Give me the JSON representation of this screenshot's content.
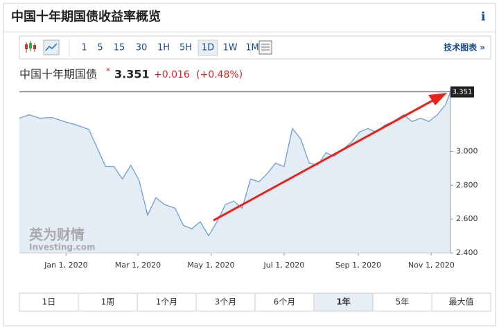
{
  "header": {
    "title": "中国十年期国债收益率概览",
    "info": "i"
  },
  "toolbar": {
    "intervals": [
      "1",
      "5",
      "15",
      "30",
      "1H",
      "5H",
      "1D",
      "1W",
      "1M"
    ],
    "active": 6,
    "link": "技术图表 »"
  },
  "quote": {
    "name": "中国十年期国债",
    "price": "3.351",
    "change": "+0.016",
    "change_pct": "(+0.48%)"
  },
  "watermark": {
    "brand": "英为财情",
    "site": "Investing.com"
  },
  "chart": {
    "type": "line",
    "color": "#6a9fd4",
    "x": [
      "2019-11-23",
      "2019-12-01",
      "2019-12-10",
      "2019-12-20",
      "2019-12-31",
      "2020-01-10",
      "2020-01-20",
      "2020-02-03",
      "2020-02-10",
      "2020-02-17",
      "2020-02-24",
      "2020-03-02",
      "2020-03-09",
      "2020-03-16",
      "2020-03-23",
      "2020-04-01",
      "2020-04-08",
      "2020-04-15",
      "2020-04-22",
      "2020-04-29",
      "2020-05-06",
      "2020-05-13",
      "2020-05-20",
      "2020-05-27",
      "2020-06-03",
      "2020-06-10",
      "2020-06-17",
      "2020-06-24",
      "2020-07-01",
      "2020-07-08",
      "2020-07-15",
      "2020-07-22",
      "2020-07-29",
      "2020-08-05",
      "2020-08-12",
      "2020-08-19",
      "2020-08-26",
      "2020-09-02",
      "2020-09-09",
      "2020-09-16",
      "2020-09-23",
      "2020-09-30",
      "2020-10-09",
      "2020-10-16",
      "2020-10-23",
      "2020-10-30",
      "2020-11-06",
      "2020-11-13",
      "2020-11-17"
    ],
    "values": [
      3.196,
      3.216,
      3.196,
      3.2,
      3.175,
      3.155,
      3.13,
      2.91,
      2.91,
      2.837,
      2.918,
      2.829,
      2.624,
      2.727,
      2.686,
      2.665,
      2.563,
      2.543,
      2.584,
      2.502,
      2.584,
      2.686,
      2.706,
      2.665,
      2.837,
      2.82,
      2.869,
      2.931,
      2.91,
      3.135,
      3.073,
      2.931,
      2.918,
      2.992,
      2.971,
      3.012,
      3.053,
      3.114,
      3.135,
      3.114,
      3.155,
      3.176,
      3.216,
      3.176,
      3.196,
      3.176,
      3.216,
      3.278,
      3.351
    ],
    "xlim": [
      "2019-11-23",
      "2020-11-17"
    ],
    "xticks": [
      {
        "value": "2020-01-01",
        "label": "Jan 1, 2020"
      },
      {
        "value": "2020-03-01",
        "label": "Mar 1, 2020"
      },
      {
        "value": "2020-05-01",
        "label": "May 1, 2020"
      },
      {
        "value": "2020-07-01",
        "label": "Jul 1, 2020"
      },
      {
        "value": "2020-09-01",
        "label": "Sep 1, 2020"
      },
      {
        "value": "2020-11-01",
        "label": "Nov 1, 2020"
      }
    ],
    "ylim": [
      2.4,
      3.37
    ],
    "yticks": [
      {
        "value": 2.4,
        "label": "2.400"
      },
      {
        "value": 2.6,
        "label": "2.600"
      },
      {
        "value": 2.8,
        "label": "2.800"
      },
      {
        "value": 3,
        "label": "3.000"
      }
    ]
  },
  "ranges": {
    "options": [
      "1日",
      "1周",
      "1个月",
      "3个月",
      "6个月",
      "1年",
      "5年",
      "最大值"
    ],
    "active": 5
  }
}
